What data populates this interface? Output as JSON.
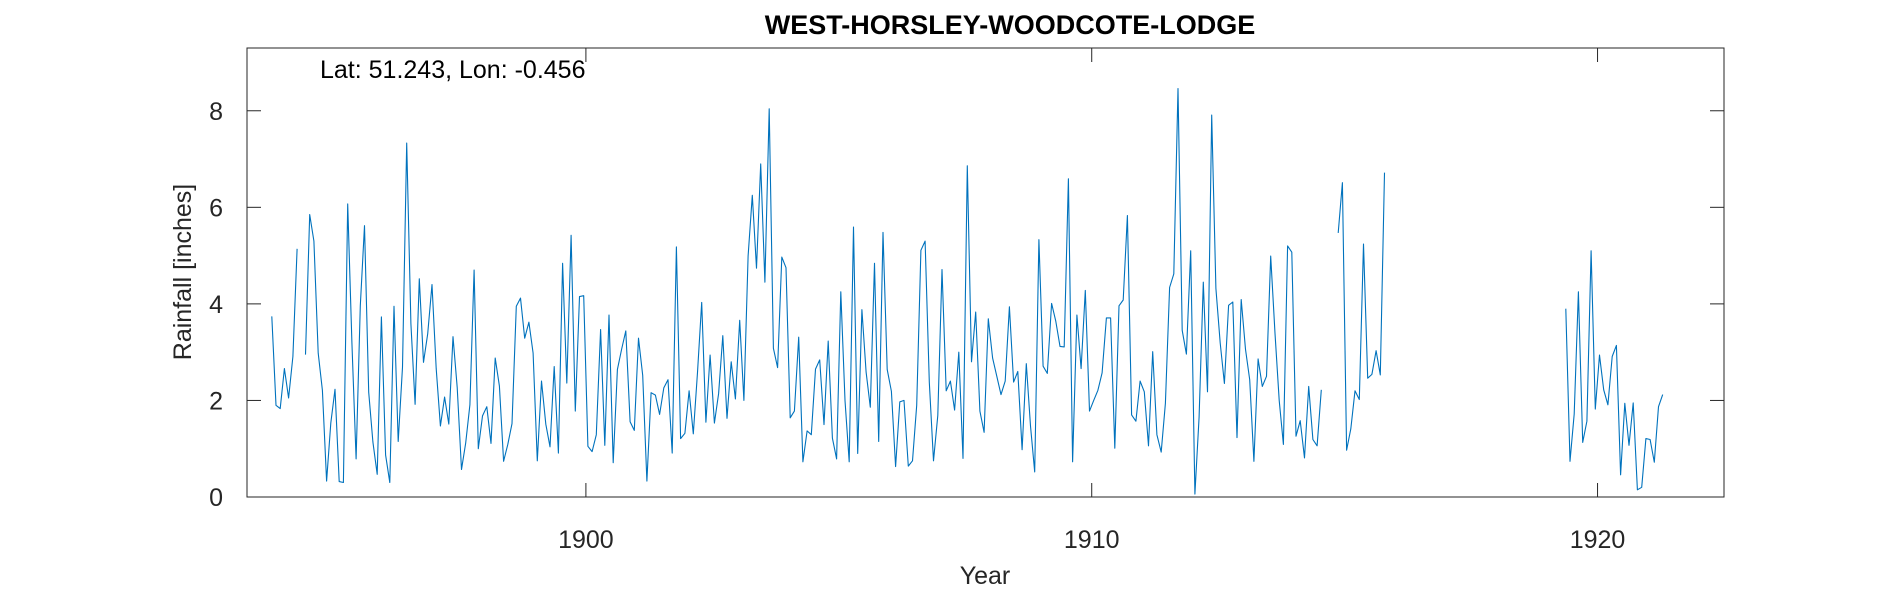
{
  "chart_data": {
    "type": "line",
    "title": "WEST-HORSLEY-WOODCOTE-LODGE",
    "annotation": "Lat: 51.243, Lon: -0.456",
    "xlabel": "Year",
    "ylabel": "Rainfall [inches]",
    "xlim": [
      1893.3,
      1922.5
    ],
    "ylim": [
      0,
      9.3
    ],
    "xticks": [
      1900,
      1910,
      1920
    ],
    "yticks": [
      0,
      2,
      4,
      6,
      8
    ],
    "grid": false,
    "line_color": "#0072BD",
    "series": [
      {
        "x_start": 1893.79,
        "step": 0.08333,
        "segments": [
          {
            "start_index": 0,
            "values": [
              3.74,
              1.9,
              1.83,
              2.66,
              2.05,
              2.91,
              5.14,
              null,
              2.95,
              5.85,
              5.3,
              2.98,
              2.21,
              0.33,
              1.53,
              2.23,
              0.32,
              0.3,
              6.07,
              3.2,
              0.79,
              3.96,
              5.62,
              2.17,
              1.14,
              0.47,
              3.73,
              0.87,
              0.3,
              3.95,
              1.15,
              2.69,
              7.33,
              3.59,
              1.92,
              4.52,
              2.79,
              3.38,
              4.4,
              2.66,
              1.47,
              2.07,
              1.51,
              3.32,
              2.27,
              0.57,
              1.12,
              1.91,
              4.7,
              1.0,
              1.68,
              1.87,
              1.11,
              2.88,
              2.3,
              0.74,
              1.09,
              1.52,
              3.95,
              4.12,
              3.29,
              3.62,
              2.98,
              0.75,
              2.4,
              1.51,
              1.04,
              2.7,
              0.91,
              4.84,
              2.36,
              5.42,
              1.78,
              4.15,
              4.17,
              1.05,
              0.94,
              1.29,
              3.47,
              1.07,
              3.77,
              0.71,
              2.64,
              3.06,
              3.44,
              1.56,
              1.38,
              3.29,
              2.52,
              0.33,
              2.16,
              2.11,
              1.71,
              2.26,
              2.43,
              0.91,
              5.18,
              1.21,
              1.32,
              2.2,
              1.31,
              2.58,
              4.03,
              1.55,
              2.94,
              1.53,
              2.14,
              3.34,
              1.63,
              2.8,
              2.03,
              3.66,
              2.0,
              4.99,
              6.25,
              4.74,
              6.9,
              4.45,
              8.04,
              3.08,
              2.68,
              4.97,
              4.75,
              1.64,
              1.78,
              3.31,
              0.73,
              1.37,
              1.29,
              2.65,
              2.84,
              1.5,
              3.23,
              1.22,
              0.79,
              4.25,
              2.0,
              0.73,
              5.59,
              0.9,
              3.88,
              2.59,
              1.86,
              4.84,
              1.15,
              5.48,
              2.64,
              2.19,
              0.63,
              1.97,
              2.0,
              0.64,
              0.75,
              1.9,
              5.11,
              5.3,
              2.38,
              0.75,
              1.69,
              4.71,
              2.2,
              2.4,
              1.8,
              3.0,
              0.8,
              6.86,
              2.8,
              3.83,
              1.78,
              1.34,
              3.69,
              2.88,
              2.5,
              2.12,
              2.4,
              3.94,
              2.38,
              2.6,
              0.98,
              2.76,
              1.47,
              0.52,
              5.33,
              2.71,
              2.56,
              4.01,
              3.64,
              3.12,
              3.11,
              6.59,
              0.73,
              3.77,
              2.66,
              4.28,
              1.78,
              2.0,
              2.21,
              2.57,
              3.71,
              3.71,
              1.01,
              3.96,
              4.08,
              5.83,
              1.7,
              1.57,
              2.4,
              2.18,
              1.06,
              3.01,
              1.29,
              0.93,
              1.94,
              4.34,
              4.62,
              8.46,
              3.45,
              2.96,
              5.1,
              0.06,
              1.66,
              4.45,
              2.18,
              7.91,
              4.32,
              3.19,
              2.35,
              3.97,
              4.04,
              1.23,
              4.09,
              3.06,
              2.43,
              0.74,
              2.86,
              2.29,
              2.5,
              4.99,
              3.39,
              2.0,
              1.09,
              5.2,
              5.07,
              1.26,
              1.58,
              0.81,
              2.29,
              1.19,
              1.06,
              2.22,
              null,
              null,
              null,
              5.47,
              6.51,
              0.97,
              1.41,
              2.2,
              2.02,
              5.24,
              2.46,
              2.54,
              3.03,
              2.53,
              6.72
            ]
          },
          {
            "start_index": 307,
            "values": [
              3.9,
              0.74,
              1.72,
              4.25,
              1.13,
              1.57,
              5.1,
              1.82,
              2.94,
              2.22,
              1.91,
              2.91,
              3.14,
              0.46,
              1.94,
              1.07,
              1.95,
              0.15,
              0.2,
              1.21,
              1.19,
              0.72,
              1.87,
              2.12
            ]
          }
        ]
      }
    ]
  }
}
